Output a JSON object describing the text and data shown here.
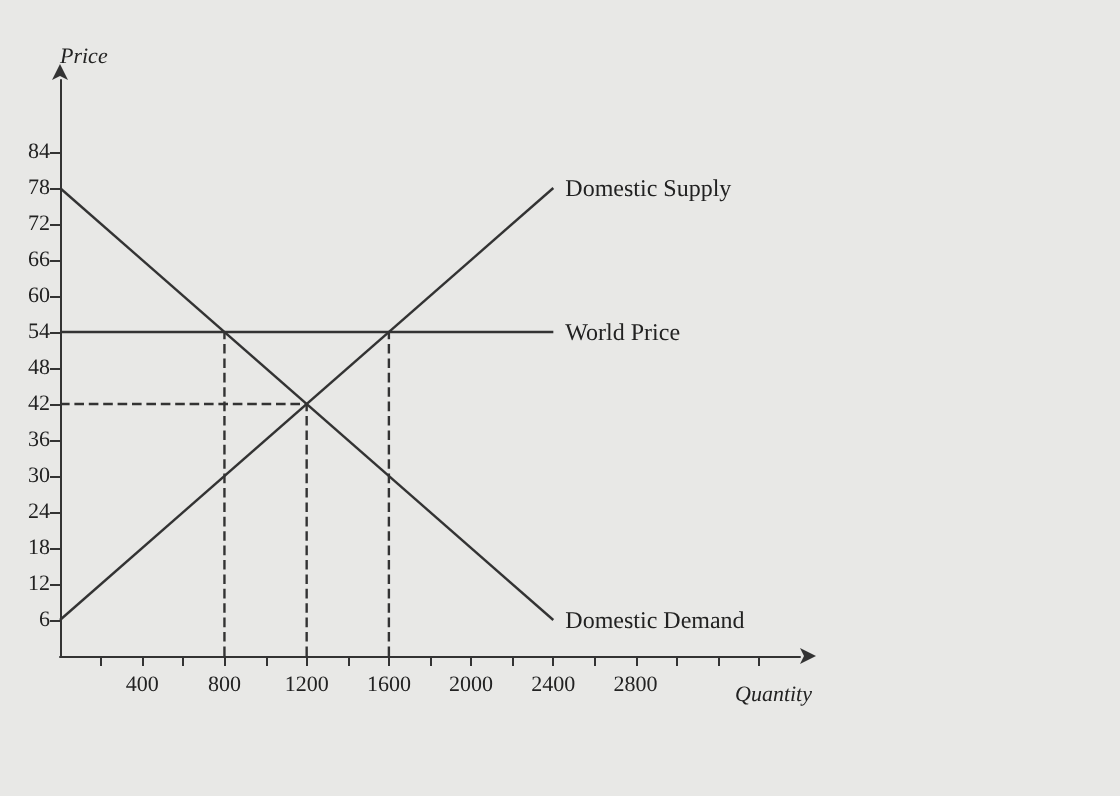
{
  "chart_data": {
    "type": "line",
    "xlabel": "Quantity",
    "ylabel": "Price",
    "xlim": [
      0,
      3600
    ],
    "ylim": [
      0,
      96
    ],
    "xticks": [
      {
        "value": 200,
        "label": null
      },
      400,
      {
        "value": 600,
        "label": null
      },
      800,
      {
        "value": 1000,
        "label": null
      },
      1200,
      {
        "value": 1400,
        "label": null
      },
      1600,
      {
        "value": 1800,
        "label": null
      },
      2000,
      {
        "value": 2200,
        "label": null
      },
      2400,
      {
        "value": 2600,
        "label": null
      },
      2800,
      {
        "value": 3000,
        "label": null
      },
      {
        "value": 3200,
        "label": null
      },
      {
        "value": 3400,
        "label": null
      }
    ],
    "yticks": [
      6,
      12,
      18,
      24,
      30,
      36,
      42,
      48,
      54,
      60,
      66,
      72,
      78,
      84
    ],
    "grid": false,
    "marker": "none",
    "line_style": "solid",
    "series": [
      {
        "name": "Domestic Supply",
        "color": "#333333",
        "x": [
          0,
          2400
        ],
        "values": [
          6,
          78
        ]
      },
      {
        "name": "World Price",
        "color": "#333333",
        "x": [
          0,
          2400
        ],
        "values": [
          54,
          54
        ]
      },
      {
        "name": "Domestic Demand",
        "color": "#333333",
        "x": [
          0,
          2400
        ],
        "values": [
          78,
          6
        ]
      },
      {
        "color": "#333333",
        "line_style": "dashed",
        "x": [
          800,
          800
        ],
        "values": [
          0,
          54
        ]
      },
      {
        "color": "#333333",
        "line_style": "dashed",
        "x": [
          1200,
          1200
        ],
        "values": [
          0,
          42
        ]
      },
      {
        "color": "#333333",
        "line_style": "dashed",
        "x": [
          1600,
          1600
        ],
        "values": [
          0,
          54
        ]
      },
      {
        "color": "#333333",
        "line_style": "dashed",
        "x": [
          0,
          1200
        ],
        "values": [
          42,
          42
        ]
      }
    ]
  }
}
